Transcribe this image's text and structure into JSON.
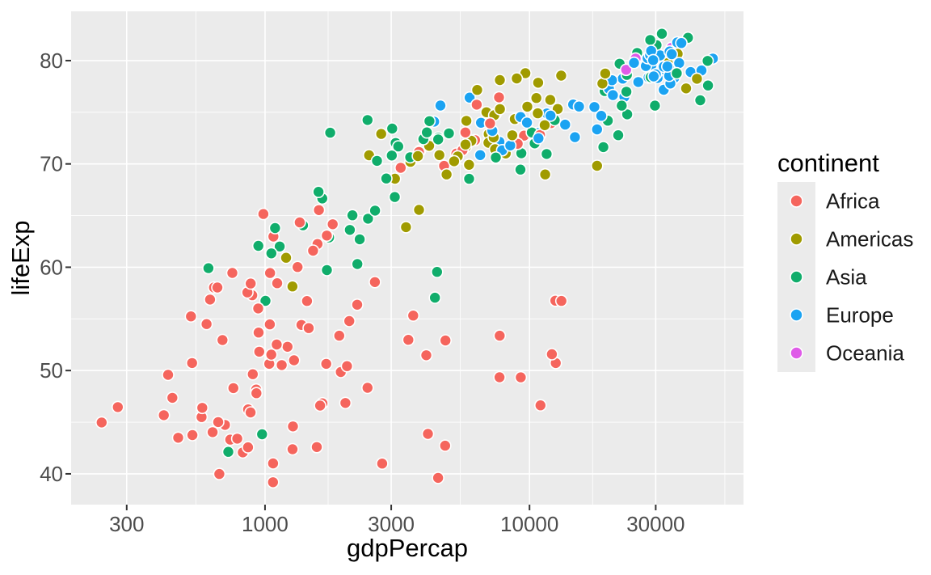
{
  "figure": {
    "background": "#FFFFFF",
    "panel_background": "#EBEBEB",
    "grid_major_color": "#FFFFFF",
    "grid_minor_color": "#FFFFFF",
    "tick_mark_color": "#333333",
    "tick_label_color": "#4D4D4D",
    "axis_title_color": "#000000",
    "legend_label_color": "#1A1A1A"
  },
  "chart_data": {
    "type": "scatter",
    "title": "",
    "xlabel": "gdpPercap",
    "ylabel": "lifeExp",
    "x_scale": "log10",
    "xlim": [
      184.9,
      64420
    ],
    "ylim": [
      37.02,
      84.77
    ],
    "x_ticks": [
      300,
      1000,
      3000,
      10000,
      30000
    ],
    "x_tick_labels": [
      "300",
      "1000",
      "3000",
      "10000",
      "30000"
    ],
    "x_minor_breaks": [
      547.7,
      1732.1,
      5477.2,
      17320.5,
      54772.3
    ],
    "y_ticks": [
      40,
      50,
      60,
      70,
      80
    ],
    "y_tick_labels": [
      "40",
      "50",
      "60",
      "70",
      "80"
    ],
    "y_minor_breaks": [
      45,
      55,
      65,
      75
    ],
    "grid": true,
    "legend": {
      "title": "continent",
      "position": "right",
      "entries": [
        {
          "label": "Africa",
          "color": "#F5655D"
        },
        {
          "label": "Americas",
          "color": "#A09B00"
        },
        {
          "label": "Asia",
          "color": "#10AD6B"
        },
        {
          "label": "Europe",
          "color": "#1BA3F2"
        },
        {
          "label": "Oceania",
          "color": "#DF5BE8"
        }
      ]
    },
    "marker": {
      "radius": 7,
      "stroke": "#FFFFFF",
      "stroke_width": 1.6
    },
    "point_format": "[gdpPercap, lifeExp, continent_index] — continent_index refers to legend.entries",
    "points": [
      [
        726.7,
        42.13,
        2
      ],
      [
        974.6,
        43.83,
        2
      ],
      [
        4604.2,
        75.65,
        3
      ],
      [
        5937,
        76.42,
        3
      ],
      [
        5288,
        70.99,
        0
      ],
      [
        6223.4,
        72.3,
        0
      ],
      [
        2773.3,
        41,
        0
      ],
      [
        4797.2,
        42.73,
        0
      ],
      [
        8797.6,
        74.34,
        1
      ],
      [
        12779.4,
        75.32,
        1
      ],
      [
        30687.8,
        80.37,
        4
      ],
      [
        34435.4,
        81.24,
        4
      ],
      [
        32417.6,
        78.98,
        3
      ],
      [
        36126.5,
        79.83,
        3
      ],
      [
        23403.6,
        74.8,
        2
      ],
      [
        29796,
        75.64,
        2
      ],
      [
        1136.4,
        62.01,
        2
      ],
      [
        1391.3,
        64.06,
        2
      ],
      [
        30485.9,
        78.32,
        3
      ],
      [
        33692.6,
        79.44,
        3
      ],
      [
        1372.9,
        54.41,
        0
      ],
      [
        1441.3,
        56.73,
        0
      ],
      [
        3413.3,
        63.88,
        1
      ],
      [
        3822.1,
        65.55,
        1
      ],
      [
        4359.6,
        74.09,
        3
      ],
      [
        7446.3,
        74.85,
        3
      ],
      [
        11003.6,
        46.63,
        0
      ],
      [
        12570,
        50.73,
        0
      ],
      [
        8131.2,
        71.01,
        1
      ],
      [
        9065.8,
        72.39,
        1
      ],
      [
        7696.8,
        72.14,
        3
      ],
      [
        10681,
        73,
        3
      ],
      [
        1037.6,
        50.65,
        0
      ],
      [
        1217,
        52.3,
        0
      ],
      [
        446.4,
        47.36,
        0
      ],
      [
        430.1,
        49.58,
        0
      ],
      [
        1003.9,
        56.75,
        2
      ],
      [
        1713.8,
        59.72,
        2
      ],
      [
        1934,
        49.86,
        0
      ],
      [
        2042.1,
        50.43,
        0
      ],
      [
        33329,
        79.77,
        1
      ],
      [
        36319.2,
        80.65,
        1
      ],
      [
        738.7,
        43.31,
        0
      ],
      [
        706,
        44.74,
        0
      ],
      [
        1156.2,
        50.53,
        0
      ],
      [
        1704.1,
        50.65,
        0
      ],
      [
        10778.8,
        77.86,
        1
      ],
      [
        13171.6,
        78.55,
        1
      ],
      [
        3119.3,
        72.03,
        2
      ],
      [
        4959.1,
        72.96,
        2
      ],
      [
        5755.3,
        71.68,
        1
      ],
      [
        7006.6,
        72.89,
        1
      ],
      [
        1075.8,
        62.97,
        0
      ],
      [
        986.1,
        65.15,
        0
      ],
      [
        241.2,
        44.97,
        0
      ],
      [
        277.6,
        46.46,
        0
      ],
      [
        3484.2,
        52.97,
        0
      ],
      [
        3632.6,
        55.32,
        0
      ],
      [
        7723.4,
        78.12,
        1
      ],
      [
        9645.1,
        78.78,
        1
      ],
      [
        1648.8,
        46.83,
        0
      ],
      [
        2441.6,
        48.33,
        0
      ],
      [
        11628.4,
        74.88,
        3
      ],
      [
        14619.2,
        75.75,
        3
      ],
      [
        6340.6,
        77.16,
        1
      ],
      [
        8948.1,
        78.27,
        1
      ],
      [
        17596.2,
        75.51,
        3
      ],
      [
        22833.3,
        76.49,
        3
      ],
      [
        32166.5,
        77.18,
        3
      ],
      [
        35278.4,
        78.33,
        3
      ],
      [
        1908.3,
        53.37,
        0
      ],
      [
        2082.5,
        54.79,
        0
      ],
      [
        4563.8,
        70.85,
        1
      ],
      [
        6025.4,
        72.24,
        1
      ],
      [
        5773,
        74.17,
        1
      ],
      [
        6873.3,
        75,
        1
      ],
      [
        4754.6,
        69.81,
        0
      ],
      [
        5581.2,
        71.34,
        0
      ],
      [
        5351.6,
        70.73,
        1
      ],
      [
        5728.4,
        71.88,
        1
      ],
      [
        7703.5,
        49.35,
        0
      ],
      [
        12154.1,
        51.58,
        0
      ],
      [
        525,
        55.24,
        0
      ],
      [
        641.4,
        58.04,
        0
      ],
      [
        530.1,
        50.73,
        0
      ],
      [
        690.8,
        52.95,
        0
      ],
      [
        28204.6,
        78.37,
        3
      ],
      [
        33207.1,
        79.31,
        3
      ],
      [
        28926,
        79.59,
        3
      ],
      [
        30470,
        80.66,
        3
      ],
      [
        12521.7,
        56.76,
        0
      ],
      [
        13206.5,
        56.74,
        0
      ],
      [
        660.6,
        58.04,
        0
      ],
      [
        752.7,
        59.45,
        0
      ],
      [
        30035.8,
        78.67,
        3
      ],
      [
        32170.4,
        79.41,
        3
      ],
      [
        1112,
        58.45,
        0
      ],
      [
        1327.6,
        60.02,
        0
      ],
      [
        22514.3,
        78.26,
        3
      ],
      [
        27538.4,
        79.48,
        3
      ],
      [
        4858.3,
        68.98,
        1
      ],
      [
        5186.1,
        70.26,
        1
      ],
      [
        945.6,
        53.68,
        0
      ],
      [
        942.7,
        56.01,
        0
      ],
      [
        575.7,
        45.5,
        0
      ],
      [
        579.2,
        46.39,
        0
      ],
      [
        1270.4,
        58.14,
        1
      ],
      [
        1201.6,
        60.92,
        1
      ],
      [
        3099.7,
        68.57,
        1
      ],
      [
        3548.3,
        70.2,
        1
      ],
      [
        30209,
        81.5,
        2
      ],
      [
        39725,
        82.21,
        2
      ],
      [
        14843.9,
        72.59,
        3
      ],
      [
        18008.9,
        73.34,
        3
      ],
      [
        31163.2,
        80.5,
        3
      ],
      [
        36180.8,
        81.76,
        3
      ],
      [
        1746.8,
        62.88,
        2
      ],
      [
        2452.2,
        64.7,
        2
      ],
      [
        2873.9,
        68.59,
        2
      ],
      [
        3540.7,
        70.65,
        2
      ],
      [
        9240.8,
        69.45,
        2
      ],
      [
        11605.7,
        70.96,
        2
      ],
      [
        4390.7,
        57.05,
        2
      ],
      [
        4471.1,
        59.55,
        2
      ],
      [
        34077,
        77.78,
        3
      ],
      [
        40676,
        78.89,
        3
      ],
      [
        21905.6,
        79.7,
        2
      ],
      [
        25523.3,
        80.75,
        2
      ],
      [
        27968.1,
        80.24,
        3
      ],
      [
        28569.7,
        80.55,
        3
      ],
      [
        6994.8,
        72.05,
        1
      ],
      [
        7320.9,
        72.57,
        1
      ],
      [
        28604.6,
        82,
        2
      ],
      [
        31656.1,
        82.6,
        2
      ],
      [
        3844.9,
        71.26,
        2
      ],
      [
        4519.5,
        72.54,
        2
      ],
      [
        1287.5,
        50.99,
        0
      ],
      [
        1463.2,
        54.11,
        0
      ],
      [
        1646.8,
        66.66,
        2
      ],
      [
        1593.1,
        67.3,
        2
      ],
      [
        19234,
        77.05,
        2
      ],
      [
        23348.1,
        78.62,
        2
      ],
      [
        44203.9,
        76.16,
        2
      ],
      [
        47307,
        77.59,
        2
      ],
      [
        9313.9,
        71.03,
        2
      ],
      [
        10461.1,
        71.99,
        2
      ],
      [
        1275.2,
        44.59,
        0
      ],
      [
        1569.3,
        42.59,
        0
      ],
      [
        531.5,
        43.75,
        0
      ],
      [
        414.5,
        45.68,
        0
      ],
      [
        9534.7,
        72.74,
        0
      ],
      [
        12057.5,
        73.95,
        0
      ],
      [
        894.6,
        57.29,
        0
      ],
      [
        1044.8,
        59.44,
        0
      ],
      [
        665.4,
        45.01,
        0
      ],
      [
        759.3,
        48.3,
        0
      ],
      [
        10207,
        73.04,
        2
      ],
      [
        12451.7,
        74.24,
        2
      ],
      [
        951.4,
        51.82,
        0
      ],
      [
        1042.6,
        54.47,
        0
      ],
      [
        1579,
        62.25,
        0
      ],
      [
        1803.2,
        64.16,
        0
      ],
      [
        9021.8,
        71.95,
        0
      ],
      [
        10957,
        72.8,
        0
      ],
      [
        10742.4,
        74.9,
        1
      ],
      [
        11977.6,
        76.2,
        1
      ],
      [
        2140.7,
        65.03,
        2
      ],
      [
        3095.8,
        66.8,
        2
      ],
      [
        6557.2,
        73.98,
        3
      ],
      [
        9253.9,
        74.54,
        3
      ],
      [
        3258.5,
        69.62,
        0
      ],
      [
        3820.2,
        71.16,
        0
      ],
      [
        633.6,
        44.03,
        0
      ],
      [
        823.7,
        42.08,
        0
      ],
      [
        611,
        59.91,
        2
      ],
      [
        944,
        62.07,
        2
      ],
      [
        4072.3,
        51.48,
        0
      ],
      [
        4811.1,
        52.91,
        0
      ],
      [
        1057.2,
        61.34,
        2
      ],
      [
        1091.4,
        63.79,
        2
      ],
      [
        33724.8,
        78.53,
        3
      ],
      [
        36797.9,
        79.76,
        3
      ],
      [
        23189.8,
        79.11,
        4
      ],
      [
        25185,
        80.2,
        4
      ],
      [
        2474.5,
        70.84,
        1
      ],
      [
        2749.3,
        72.9,
        1
      ],
      [
        601.1,
        54.5,
        0
      ],
      [
        619.7,
        56.87,
        0
      ],
      [
        1615.3,
        46.61,
        0
      ],
      [
        2014,
        46.86,
        0
      ],
      [
        44684,
        79.05,
        3
      ],
      [
        49357.2,
        80.2,
        3
      ],
      [
        19774.8,
        74.19,
        2
      ],
      [
        22316.2,
        75.64,
        2
      ],
      [
        2092.7,
        63.61,
        2
      ],
      [
        2606,
        65.48,
        2
      ],
      [
        7356,
        74.71,
        1
      ],
      [
        9809.2,
        75.54,
        1
      ],
      [
        3783.7,
        70.76,
        1
      ],
      [
        4173,
        71.75,
        1
      ],
      [
        5909,
        69.91,
        1
      ],
      [
        7408.9,
        71.42,
        1
      ],
      [
        2650.9,
        70.3,
        2
      ],
      [
        3190.5,
        71.69,
        2
      ],
      [
        12002.2,
        74.67,
        3
      ],
      [
        15389.9,
        75.56,
        3
      ],
      [
        19970.9,
        77.29,
        3
      ],
      [
        20509.6,
        78.1,
        3
      ],
      [
        18855.6,
        77.78,
        1
      ],
      [
        19328.7,
        78.75,
        1
      ],
      [
        6316.2,
        75.74,
        0
      ],
      [
        7670.1,
        76.44,
        0
      ],
      [
        7885.4,
        71.32,
        3
      ],
      [
        10808.5,
        72.48,
        3
      ],
      [
        785.7,
        43.41,
        0
      ],
      [
        863.1,
        46.24,
        0
      ],
      [
        1353.1,
        64.34,
        0
      ],
      [
        1598.4,
        65.53,
        0
      ],
      [
        19014.5,
        71.63,
        2
      ],
      [
        21654.8,
        72.78,
        2
      ],
      [
        1519.6,
        61.6,
        0
      ],
      [
        1712.5,
        63.06,
        0
      ],
      [
        7236.1,
        73.21,
        3
      ],
      [
        9786.5,
        74,
        3
      ],
      [
        1072.8,
        41.01,
        0
      ],
      [
        862.5,
        42.57,
        0
      ],
      [
        36023.1,
        78.77,
        2
      ],
      [
        47143.2,
        79.97,
        2
      ],
      [
        13638.8,
        73.8,
        3
      ],
      [
        18678.3,
        74.66,
        3
      ],
      [
        20660,
        76.66,
        3
      ],
      [
        25768.3,
        77.93,
        3
      ],
      [
        882.1,
        45.94,
        0
      ],
      [
        926.1,
        48.16,
        0
      ],
      [
        7710.9,
        53.37,
        0
      ],
      [
        9269.7,
        49.34,
        0
      ],
      [
        24835.5,
        79.78,
        3
      ],
      [
        28821.1,
        80.94,
        3
      ],
      [
        3015.4,
        70.81,
        2
      ],
      [
        3970.1,
        72.4,
        2
      ],
      [
        2232,
        56.37,
        0
      ],
      [
        2602.4,
        58.56,
        0
      ],
      [
        4128.1,
        43.87,
        0
      ],
      [
        4513.5,
        39.61,
        0
      ],
      [
        29341.6,
        80.04,
        3
      ],
      [
        33859.7,
        80.88,
        3
      ],
      [
        34480.9,
        80.62,
        3
      ],
      [
        37506.4,
        81.7,
        3
      ],
      [
        4090.9,
        73.05,
        2
      ],
      [
        4184.6,
        74.14,
        2
      ],
      [
        23235.4,
        76.99,
        2
      ],
      [
        28718.3,
        78.4,
        2
      ],
      [
        899.1,
        49.65,
        0
      ],
      [
        1107.5,
        52.52,
        0
      ],
      [
        5913.2,
        68.56,
        2
      ],
      [
        7458.4,
        70.62,
        2
      ],
      [
        857.9,
        57.56,
        0
      ],
      [
        883,
        58.42,
        0
      ],
      [
        11460.6,
        68.98,
        1
      ],
      [
        18008.5,
        69.82,
        1
      ],
      [
        5722.9,
        73.04,
        0
      ],
      [
        7092.9,
        73.92,
        0
      ],
      [
        6508.1,
        70.85,
        3
      ],
      [
        8458.3,
        71.78,
        3
      ],
      [
        927.7,
        47.81,
        0
      ],
      [
        1056.4,
        51.54,
        0
      ],
      [
        29479,
        78.47,
        3
      ],
      [
        33203.3,
        79.43,
        3
      ],
      [
        39097.1,
        77.31,
        1
      ],
      [
        42951.7,
        78.24,
        1
      ],
      [
        7727,
        75.31,
        1
      ],
      [
        10611.5,
        76.38,
        1
      ],
      [
        8605,
        72.77,
        1
      ],
      [
        11415.8,
        73.75,
        1
      ],
      [
        1764.5,
        73.02,
        2
      ],
      [
        2441.6,
        74.25,
        2
      ],
      [
        4515.5,
        72.37,
        2
      ],
      [
        3025.3,
        73.42,
        2
      ],
      [
        2234.8,
        60.31,
        2
      ],
      [
        2280.8,
        62.7,
        2
      ],
      [
        1071.6,
        39.19,
        0
      ],
      [
        1271.2,
        42.38,
        0
      ],
      [
        672,
        39.99,
        0
      ],
      [
        469.7,
        43.49,
        0
      ]
    ]
  }
}
